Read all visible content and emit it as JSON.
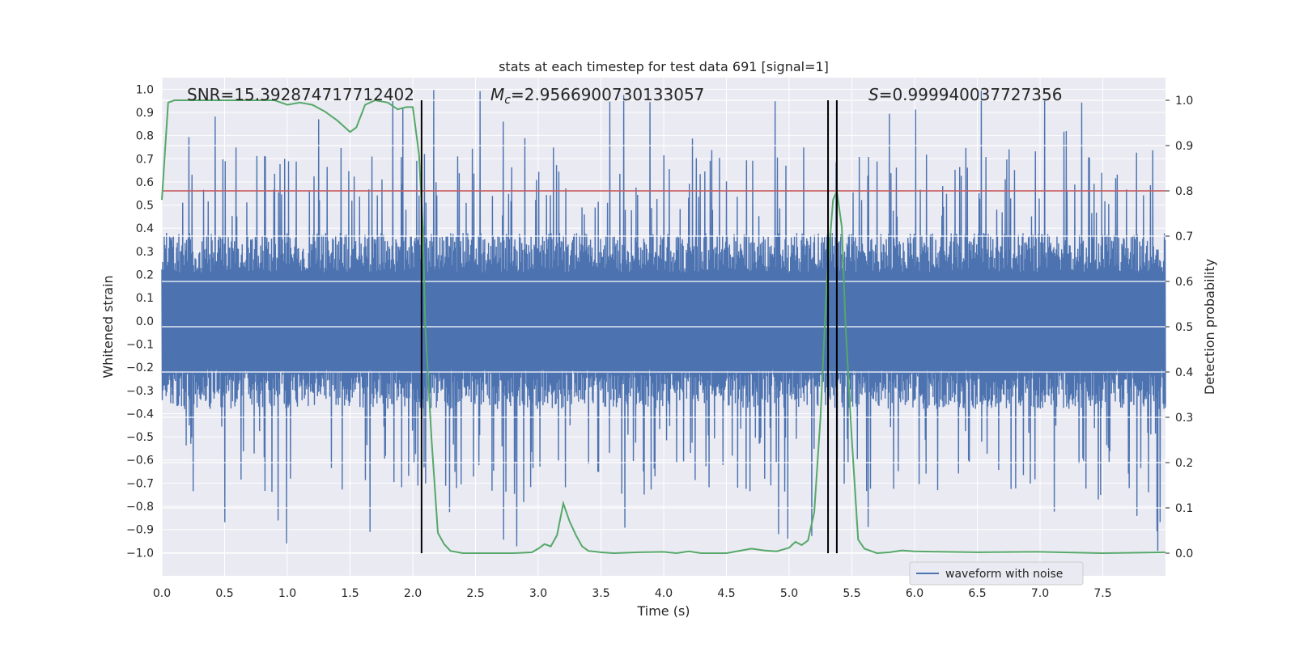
{
  "chart_data": {
    "type": "line",
    "title": "stats at each timestep for test data 691 [signal=1]",
    "xlabel": "Time (s)",
    "ylabel": "Whitened strain",
    "y2label": "Detection probability",
    "xlim": [
      0.0,
      8.0
    ],
    "ylim": [
      -1.1,
      1.05
    ],
    "y2lim": [
      -0.05,
      1.05
    ],
    "xticks": [
      "0.0",
      "0.5",
      "1.0",
      "1.5",
      "2.0",
      "2.5",
      "3.0",
      "3.5",
      "4.0",
      "4.5",
      "5.0",
      "5.5",
      "6.0",
      "6.5",
      "7.0",
      "7.5"
    ],
    "yticks": [
      "1.0",
      "0.9",
      "0.8",
      "0.7",
      "0.6",
      "0.5",
      "0.4",
      "0.3",
      "0.2",
      "0.1",
      "0.0",
      "−0.1",
      "−0.2",
      "−0.3",
      "−0.4",
      "−0.5",
      "−0.6",
      "−0.7",
      "−0.8",
      "−0.9",
      "−1.0"
    ],
    "y2ticks": [
      "1.0",
      "0.9",
      "0.8",
      "0.7",
      "0.6",
      "0.5",
      "0.4",
      "0.3",
      "0.2",
      "0.1",
      "0.0"
    ],
    "annotations": {
      "snr": "SNR=15.392874717712402",
      "mc": "=2.9566900730133057",
      "mc_symbol": "M",
      "mc_sub": "c",
      "s": "=0.999940037727356",
      "s_symbol": "S"
    },
    "threshold": 0.8,
    "vlines": [
      2.07,
      5.31,
      5.38
    ],
    "legend": {
      "label": "waveform with noise",
      "position": "lower-right"
    },
    "series": [
      {
        "name": "waveform with noise",
        "color": "#4c72b0",
        "samples": 8000,
        "core_amplitude": 0.38,
        "peak_amplitude_max": 1.0,
        "noise_seed": 691
      },
      {
        "name": "detection probability",
        "color": "#55a868",
        "x": [
          0.0,
          0.05,
          0.1,
          0.2,
          0.3,
          0.5,
          0.8,
          0.9,
          1.0,
          1.1,
          1.2,
          1.3,
          1.4,
          1.5,
          1.55,
          1.62,
          1.7,
          1.8,
          1.88,
          1.95,
          2.0,
          2.05,
          2.08,
          2.1,
          2.15,
          2.2,
          2.25,
          2.3,
          2.4,
          2.6,
          2.8,
          2.95,
          3.0,
          3.05,
          3.1,
          3.15,
          3.2,
          3.25,
          3.3,
          3.35,
          3.4,
          3.5,
          3.6,
          3.8,
          4.0,
          4.1,
          4.2,
          4.3,
          4.5,
          4.7,
          4.8,
          4.9,
          5.0,
          5.05,
          5.1,
          5.15,
          5.2,
          5.25,
          5.3,
          5.35,
          5.38,
          5.42,
          5.45,
          5.5,
          5.55,
          5.6,
          5.7,
          5.8,
          5.9,
          6.0,
          6.5,
          7.0,
          7.5,
          8.0
        ],
        "values": [
          0.78,
          0.995,
          1.0,
          1.0,
          1.0,
          1.0,
          1.0,
          1.0,
          0.99,
          0.995,
          0.99,
          0.975,
          0.955,
          0.93,
          0.94,
          0.99,
          1.0,
          0.995,
          0.98,
          0.985,
          0.985,
          0.88,
          0.72,
          0.5,
          0.25,
          0.045,
          0.02,
          0.005,
          0.0,
          0.0,
          0.0,
          0.002,
          0.01,
          0.02,
          0.015,
          0.04,
          0.11,
          0.07,
          0.04,
          0.015,
          0.005,
          0.002,
          0.0,
          0.002,
          0.003,
          0.0,
          0.004,
          0.0,
          0.0,
          0.01,
          0.006,
          0.004,
          0.012,
          0.025,
          0.018,
          0.028,
          0.09,
          0.3,
          0.6,
          0.78,
          0.8,
          0.72,
          0.5,
          0.25,
          0.03,
          0.01,
          0.0,
          0.002,
          0.006,
          0.004,
          0.002,
          0.003,
          0.0,
          0.002
        ]
      }
    ]
  }
}
